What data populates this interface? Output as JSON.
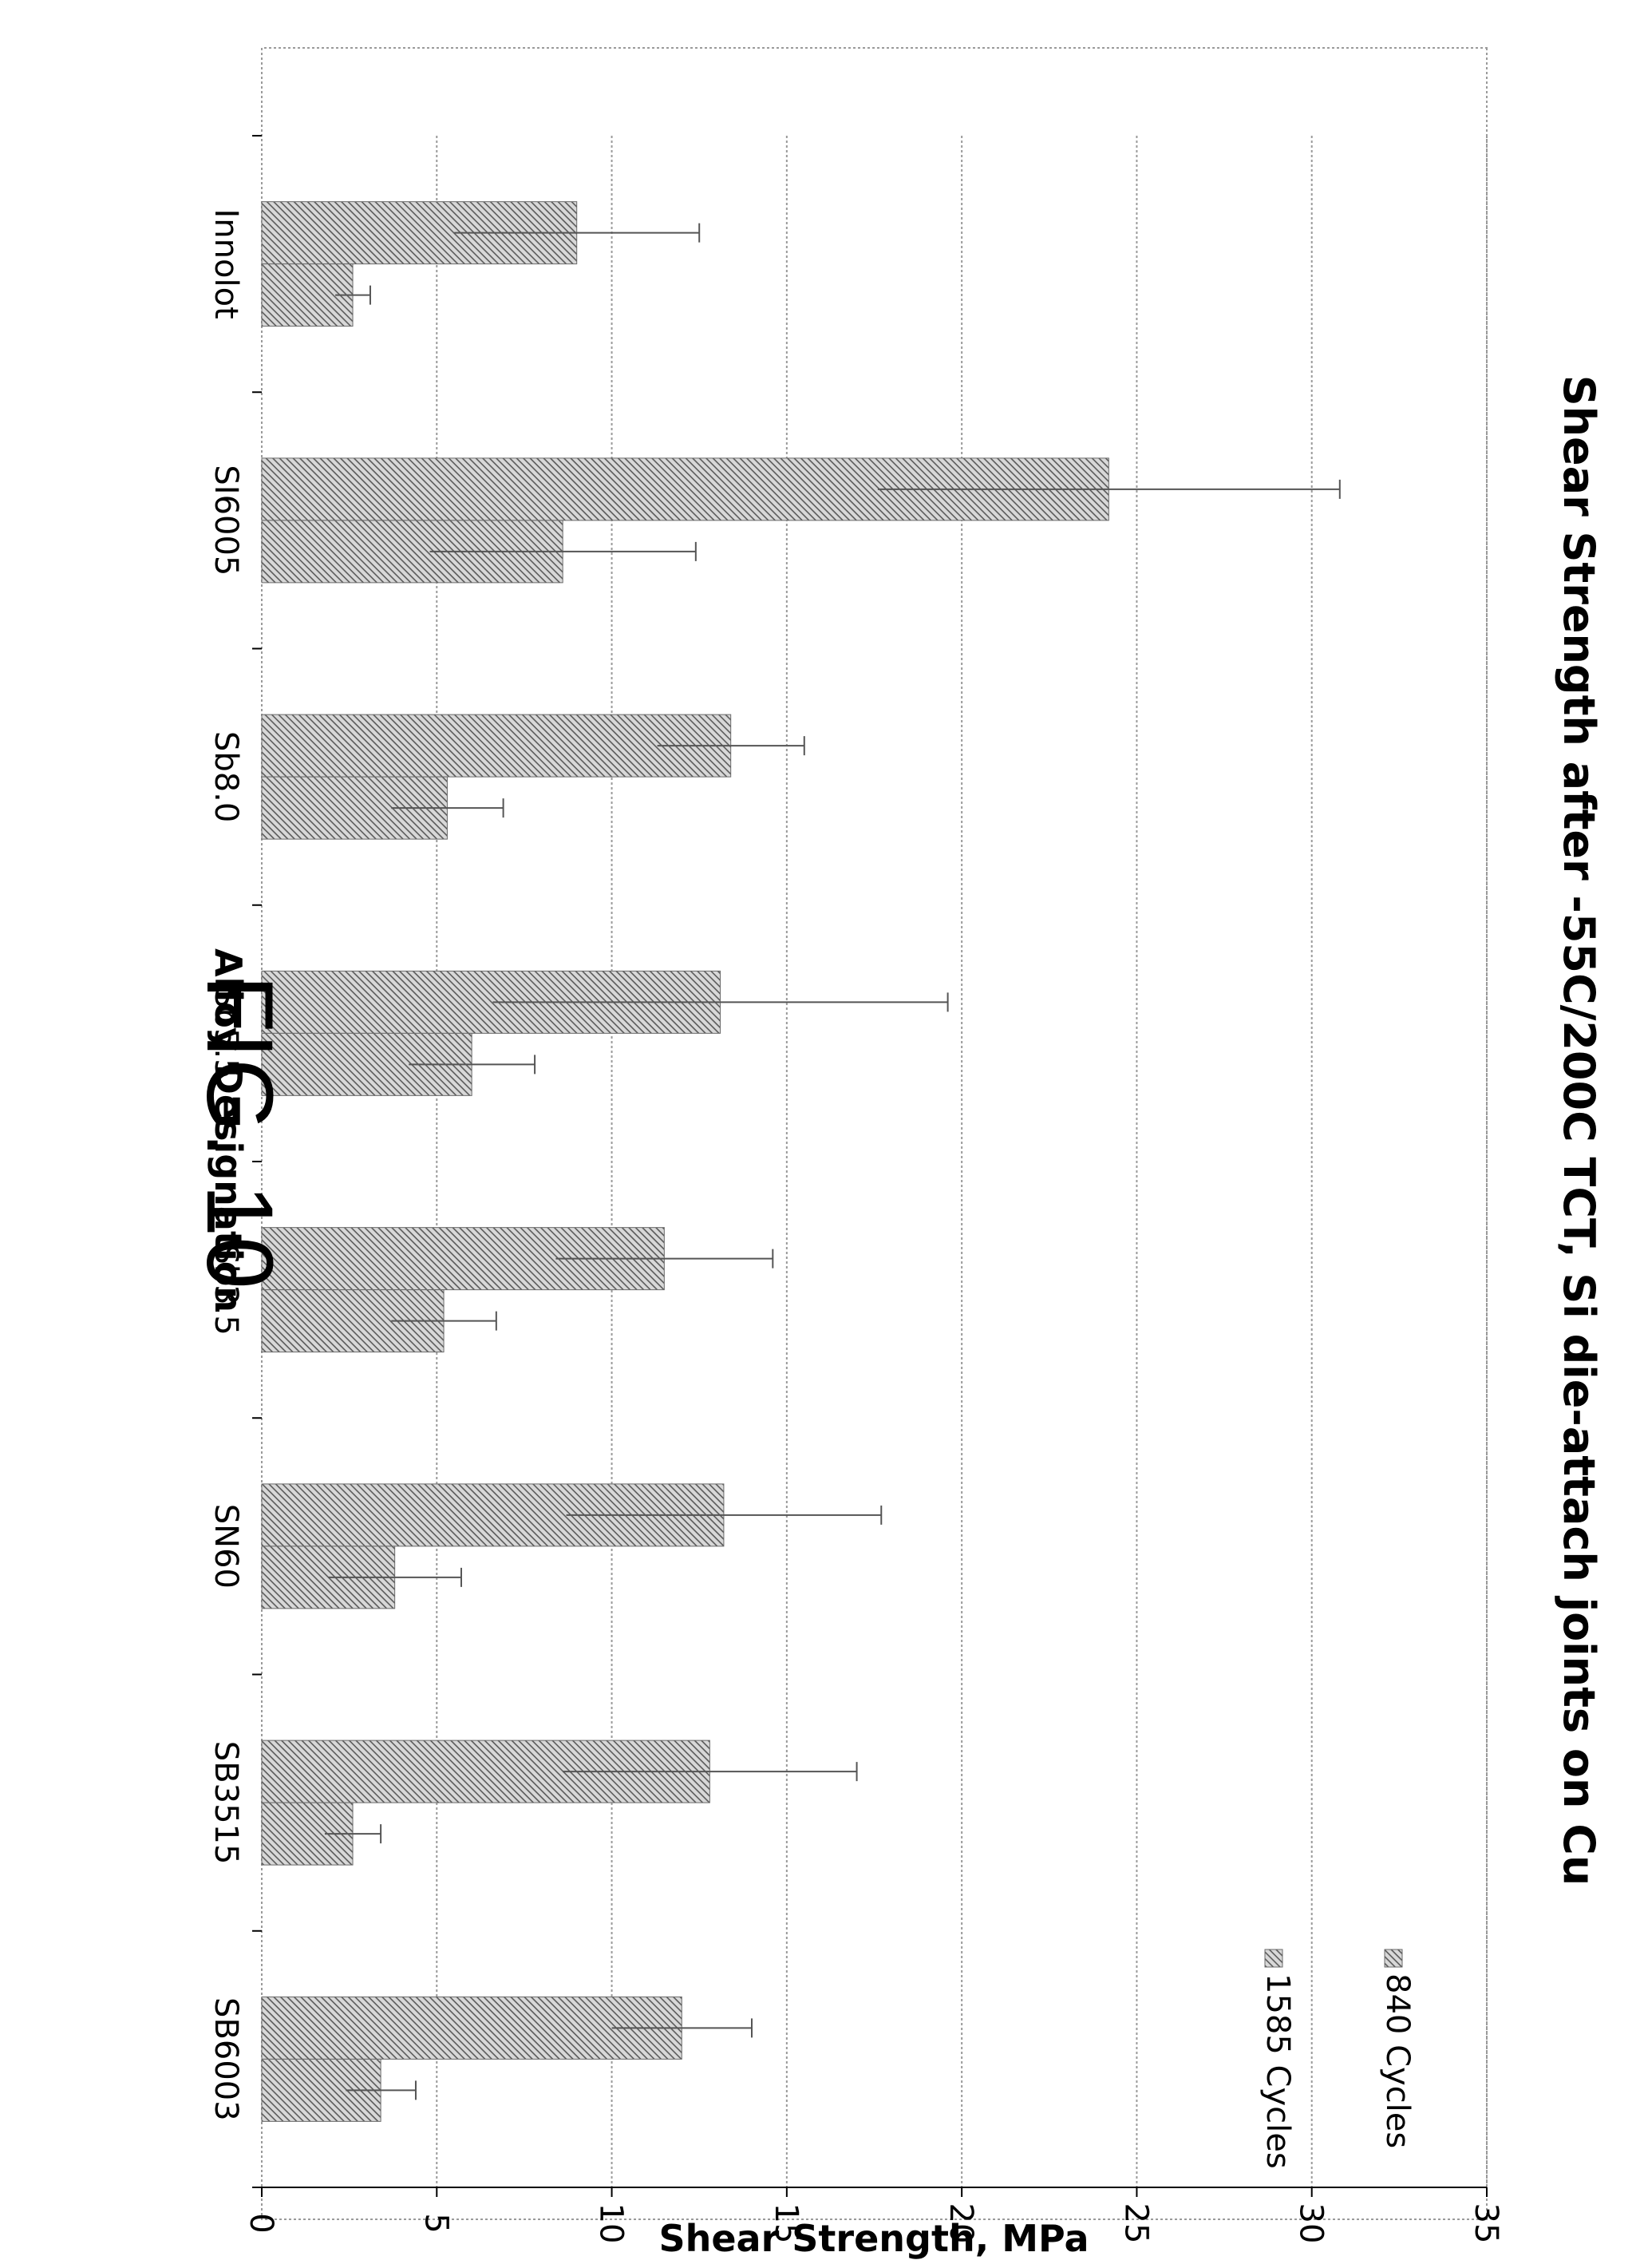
{
  "figure": {
    "caption": "FIG. 10"
  },
  "chart_data": {
    "type": "bar",
    "title": "Shear Strength after -55C/200C TCT,  Si die-attach joints on Cu",
    "xlabel": "Alloy Designation",
    "ylabel": "Shear Strength, MPa",
    "ylim": [
      0,
      35
    ],
    "yticks": [
      "0",
      "5",
      "10",
      "15",
      "20",
      "25",
      "30",
      "35"
    ],
    "categories": [
      "SB6003",
      "SB3515",
      "SN60",
      "Sb3.5",
      "Sb5.5",
      "Sb8.0",
      "SI6005",
      "Innolot"
    ],
    "series": [
      {
        "name": "840 Cycles",
        "values": [
          12.0,
          12.8,
          13.2,
          11.5,
          13.1,
          13.4,
          24.2,
          9.0
        ],
        "error": [
          2.0,
          4.2,
          4.5,
          3.1,
          6.5,
          2.1,
          6.6,
          3.5
        ]
      },
      {
        "name": "1585 Cycles",
        "values": [
          3.4,
          2.6,
          3.8,
          5.2,
          6.0,
          5.3,
          8.6,
          2.6
        ],
        "error": [
          1.0,
          0.8,
          1.9,
          1.5,
          1.8,
          1.6,
          3.8,
          0.5
        ]
      }
    ],
    "grid": true,
    "legend_position": "top-left"
  },
  "colors": {
    "series_fill": "#7a7a7a",
    "axis": "#000000",
    "grid": "#999999"
  }
}
